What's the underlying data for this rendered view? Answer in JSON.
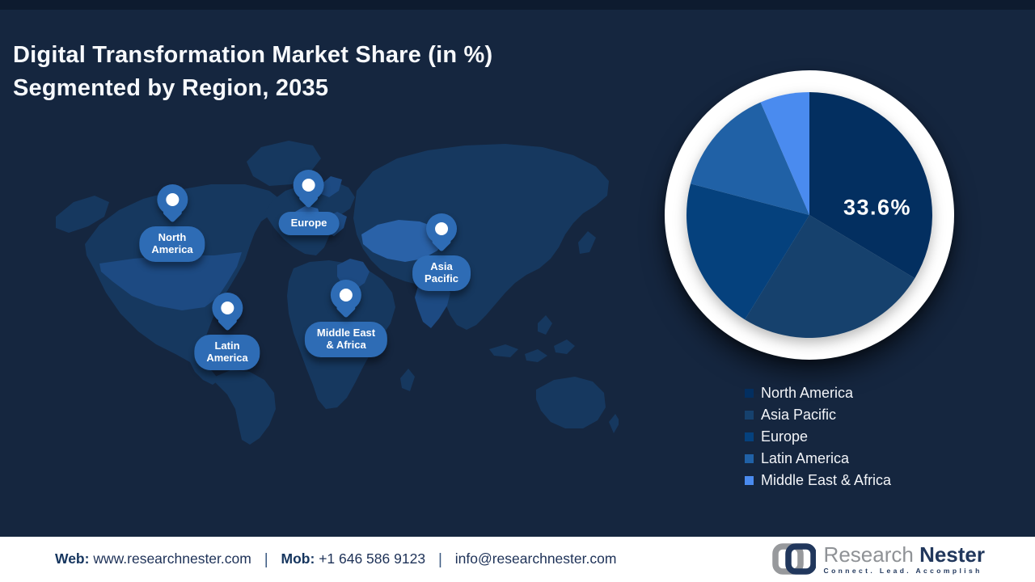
{
  "page": {
    "background": "#15263f",
    "topbar_color": "#0d1b2f"
  },
  "header": {
    "title_line1": "Digital Transformation Market Share (in %)",
    "title_line2": "Segmented by Region, 2035"
  },
  "map": {
    "pin_color": "#2e6cb5",
    "land_color": "#16385f",
    "land_light": "#2a62a8",
    "land_medium": "#1d4a82",
    "pins": [
      {
        "id": "north-america",
        "label": "North\nAmerica"
      },
      {
        "id": "europe",
        "label": "Europe"
      },
      {
        "id": "asia-pacific",
        "label": "Asia\nPacific"
      },
      {
        "id": "middle-east-africa",
        "label": "Middle East\n& Africa"
      },
      {
        "id": "latin-america",
        "label": "Latin\nAmerica"
      }
    ]
  },
  "chart_data": {
    "type": "pie",
    "title": "Digital Transformation Market Share (in %) Segmented by Region, 2035",
    "categories": [
      "North America",
      "Asia Pacific",
      "Europe",
      "Latin America",
      "Middle East & Africa"
    ],
    "values": [
      33.6,
      25.2,
      20.3,
      14.4,
      6.5
    ],
    "colors": [
      "#032f60",
      "#16416d",
      "#05417d",
      "#2061a6",
      "#4a8bef"
    ],
    "value_label": "33.6%",
    "labeled_slice": "North America",
    "start_angle_deg": 0,
    "direction": "clockwise",
    "legend_position": "bottom-right",
    "ring_color": "#ffffff"
  },
  "footer": {
    "web_label": "Web:",
    "web_value": "www.researchnester.com",
    "mob_label": "Mob:",
    "mob_value": "+1 646 586 9123",
    "email": "info@researchnester.com",
    "separator": "|"
  },
  "logo": {
    "brand_first": "Research",
    "brand_second": "Nester",
    "tagline": "Connect. Lead. Accomplish"
  }
}
